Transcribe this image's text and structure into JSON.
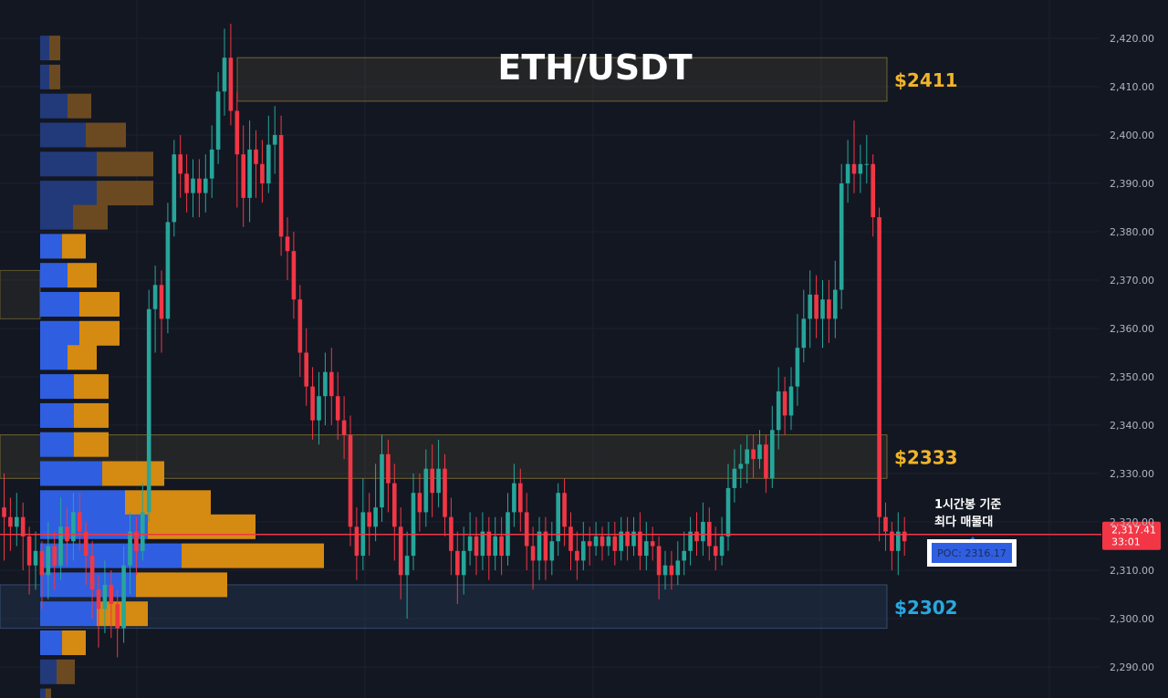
{
  "chart_data": {
    "type": "candlestick",
    "title": "ETH/USDT",
    "ylim": [
      2286,
      2424
    ],
    "y_ticks": [
      "2,420.00",
      "2,410.00",
      "2,400.00",
      "2,390.00",
      "2,380.00",
      "2,370.00",
      "2,360.00",
      "2,350.00",
      "2,340.00",
      "2,330.00",
      "2,320.00",
      "2,310.00",
      "2,300.00",
      "2,290.00"
    ],
    "y_tick_values": [
      2420,
      2410,
      2400,
      2390,
      2380,
      2370,
      2360,
      2350,
      2340,
      2330,
      2320,
      2310,
      2300,
      2290
    ],
    "current_price": "2,317.41",
    "current_price_value": 2317.41,
    "countdown": "33:01",
    "poc_label": "POC: 2316.17",
    "annotation": [
      "1시간봉 기준",
      "최다 매물대"
    ],
    "zones": [
      {
        "label": "$2411",
        "low": 2407,
        "high": 2416,
        "color": "#f0b429"
      },
      {
        "label": "$2333",
        "low": 2329,
        "high": 2338,
        "color": "#f0b429"
      },
      {
        "label": "$2302",
        "low": 2298,
        "high": 2307,
        "color": "#29a8e0"
      }
    ],
    "volume_profile": [
      {
        "price": 2418,
        "buy": 10,
        "sell": 12
      },
      {
        "price": 2412,
        "buy": 10,
        "sell": 12
      },
      {
        "price": 2406,
        "buy": 30,
        "sell": 26
      },
      {
        "price": 2400,
        "buy": 50,
        "sell": 44
      },
      {
        "price": 2394,
        "buy": 62,
        "sell": 62
      },
      {
        "price": 2388,
        "buy": 62,
        "sell": 62
      },
      {
        "price": 2383,
        "buy": 36,
        "sell": 38
      },
      {
        "price": 2377,
        "buy": 24,
        "sell": 26
      },
      {
        "price": 2371,
        "buy": 30,
        "sell": 32
      },
      {
        "price": 2365,
        "buy": 43,
        "sell": 44
      },
      {
        "price": 2359,
        "buy": 43,
        "sell": 44
      },
      {
        "price": 2354,
        "buy": 30,
        "sell": 32
      },
      {
        "price": 2348,
        "buy": 37,
        "sell": 38
      },
      {
        "price": 2342,
        "buy": 37,
        "sell": 38
      },
      {
        "price": 2336,
        "buy": 37,
        "sell": 38
      },
      {
        "price": 2330,
        "buy": 68,
        "sell": 68
      },
      {
        "price": 2324,
        "buy": 93,
        "sell": 94
      },
      {
        "price": 2319,
        "buy": 118,
        "sell": 118
      },
      {
        "price": 2313,
        "buy": 155,
        "sell": 156
      },
      {
        "price": 2307,
        "buy": 105,
        "sell": 100
      },
      {
        "price": 2301,
        "buy": 62,
        "sell": 56
      },
      {
        "price": 2295,
        "buy": 24,
        "sell": 26
      },
      {
        "price": 2289,
        "buy": 18,
        "sell": 20
      },
      {
        "price": 2283,
        "buy": 6,
        "sell": 6
      }
    ],
    "candles": [
      [
        2323,
        2321,
        2330,
        2312
      ],
      [
        2321,
        2319,
        2325,
        2314
      ],
      [
        2319,
        2321,
        2326,
        2315
      ],
      [
        2321,
        2317,
        2324,
        2310
      ],
      [
        2317,
        2311,
        2319,
        2305
      ],
      [
        2311,
        2314,
        2318,
        2306
      ],
      [
        2314,
        2309,
        2316,
        2302
      ],
      [
        2309,
        2315,
        2320,
        2304
      ],
      [
        2315,
        2311,
        2318,
        2306
      ],
      [
        2311,
        2319,
        2325,
        2308
      ],
      [
        2319,
        2316,
        2323,
        2311
      ],
      [
        2316,
        2322,
        2326,
        2312
      ],
      [
        2322,
        2318,
        2326,
        2314
      ],
      [
        2318,
        2313,
        2320,
        2307
      ],
      [
        2313,
        2306,
        2316,
        2300
      ],
      [
        2306,
        2302,
        2309,
        2294
      ],
      [
        2302,
        2307,
        2312,
        2297
      ],
      [
        2307,
        2303,
        2310,
        2296
      ],
      [
        2303,
        2298,
        2306,
        2292
      ],
      [
        2298,
        2311,
        2315,
        2295
      ],
      [
        2311,
        2318,
        2322,
        2305
      ],
      [
        2318,
        2314,
        2321,
        2309
      ],
      [
        2314,
        2322,
        2328,
        2312
      ],
      [
        2322,
        2364,
        2368,
        2320
      ],
      [
        2364,
        2369,
        2373,
        2355
      ],
      [
        2369,
        2362,
        2372,
        2355
      ],
      [
        2362,
        2382,
        2386,
        2359
      ],
      [
        2382,
        2396,
        2399,
        2379
      ],
      [
        2396,
        2392,
        2400,
        2387
      ],
      [
        2392,
        2388,
        2396,
        2384
      ],
      [
        2388,
        2391,
        2395,
        2383
      ],
      [
        2391,
        2388,
        2395,
        2383
      ],
      [
        2388,
        2391,
        2396,
        2384
      ],
      [
        2391,
        2397,
        2402,
        2387
      ],
      [
        2397,
        2409,
        2413,
        2394
      ],
      [
        2409,
        2416,
        2422,
        2404
      ],
      [
        2416,
        2405,
        2423,
        2402
      ],
      [
        2405,
        2396,
        2409,
        2385
      ],
      [
        2396,
        2387,
        2402,
        2381
      ],
      [
        2387,
        2397,
        2403,
        2382
      ],
      [
        2397,
        2394,
        2401,
        2387
      ],
      [
        2394,
        2390,
        2399,
        2386
      ],
      [
        2390,
        2398,
        2404,
        2388
      ],
      [
        2398,
        2400,
        2406,
        2392
      ],
      [
        2400,
        2379,
        2404,
        2375
      ],
      [
        2379,
        2376,
        2383,
        2370
      ],
      [
        2376,
        2366,
        2380,
        2362
      ],
      [
        2366,
        2355,
        2369,
        2350
      ],
      [
        2355,
        2348,
        2360,
        2344
      ],
      [
        2348,
        2341,
        2352,
        2337
      ],
      [
        2341,
        2346,
        2351,
        2336
      ],
      [
        2346,
        2351,
        2355,
        2340
      ],
      [
        2351,
        2346,
        2356,
        2340
      ],
      [
        2346,
        2341,
        2351,
        2337
      ],
      [
        2341,
        2338,
        2346,
        2333
      ],
      [
        2338,
        2319,
        2342,
        2315
      ],
      [
        2319,
        2313,
        2323,
        2308
      ],
      [
        2313,
        2322,
        2329,
        2310
      ],
      [
        2322,
        2319,
        2326,
        2313
      ],
      [
        2319,
        2323,
        2332,
        2316
      ],
      [
        2323,
        2334,
        2338,
        2320
      ],
      [
        2334,
        2328,
        2337,
        2322
      ],
      [
        2328,
        2319,
        2332,
        2312
      ],
      [
        2319,
        2309,
        2323,
        2304
      ],
      [
        2309,
        2313,
        2318,
        2300
      ],
      [
        2313,
        2326,
        2330,
        2310
      ],
      [
        2326,
        2322,
        2330,
        2318
      ],
      [
        2322,
        2331,
        2335,
        2319
      ],
      [
        2331,
        2326,
        2336,
        2321
      ],
      [
        2326,
        2331,
        2337,
        2323
      ],
      [
        2331,
        2321,
        2334,
        2317
      ],
      [
        2321,
        2314,
        2325,
        2309
      ],
      [
        2314,
        2309,
        2318,
        2303
      ],
      [
        2309,
        2314,
        2319,
        2305
      ],
      [
        2314,
        2317,
        2322,
        2311
      ],
      [
        2317,
        2313,
        2321,
        2309
      ],
      [
        2313,
        2318,
        2322,
        2310
      ],
      [
        2318,
        2313,
        2321,
        2308
      ],
      [
        2313,
        2317,
        2321,
        2310
      ],
      [
        2317,
        2313,
        2321,
        2309
      ],
      [
        2313,
        2322,
        2326,
        2311
      ],
      [
        2322,
        2328,
        2332,
        2319
      ],
      [
        2328,
        2322,
        2331,
        2318
      ],
      [
        2322,
        2315,
        2326,
        2310
      ],
      [
        2315,
        2312,
        2319,
        2306
      ],
      [
        2312,
        2318,
        2321,
        2308
      ],
      [
        2318,
        2312,
        2321,
        2308
      ],
      [
        2312,
        2316,
        2320,
        2309
      ],
      [
        2316,
        2326,
        2328,
        2313
      ],
      [
        2326,
        2319,
        2329,
        2315
      ],
      [
        2319,
        2314,
        2322,
        2310
      ],
      [
        2314,
        2312,
        2318,
        2308
      ],
      [
        2312,
        2316,
        2320,
        2310
      ],
      [
        2316,
        2315,
        2319,
        2311
      ],
      [
        2315,
        2317,
        2320,
        2313
      ],
      [
        2317,
        2315,
        2319,
        2312
      ],
      [
        2315,
        2317,
        2320,
        2313
      ],
      [
        2317,
        2314,
        2320,
        2311
      ],
      [
        2314,
        2318,
        2321,
        2312
      ],
      [
        2318,
        2315,
        2321,
        2312
      ],
      [
        2315,
        2318,
        2321,
        2313
      ],
      [
        2318,
        2313,
        2322,
        2310
      ],
      [
        2313,
        2316,
        2320,
        2310
      ],
      [
        2316,
        2315,
        2319,
        2312
      ],
      [
        2315,
        2309,
        2317,
        2304
      ],
      [
        2309,
        2311,
        2314,
        2306
      ],
      [
        2311,
        2309,
        2314,
        2306
      ],
      [
        2309,
        2312,
        2316,
        2307
      ],
      [
        2312,
        2314,
        2318,
        2309
      ],
      [
        2314,
        2318,
        2321,
        2311
      ],
      [
        2318,
        2316,
        2322,
        2313
      ],
      [
        2316,
        2320,
        2324,
        2313
      ],
      [
        2320,
        2315,
        2323,
        2312
      ],
      [
        2315,
        2313,
        2319,
        2310
      ],
      [
        2313,
        2317,
        2321,
        2311
      ],
      [
        2317,
        2327,
        2332,
        2314
      ],
      [
        2327,
        2331,
        2335,
        2324
      ],
      [
        2331,
        2332,
        2336,
        2327
      ],
      [
        2332,
        2335,
        2338,
        2328
      ],
      [
        2335,
        2333,
        2338,
        2329
      ],
      [
        2333,
        2336,
        2339,
        2331
      ],
      [
        2336,
        2329,
        2338,
        2326
      ],
      [
        2329,
        2339,
        2344,
        2327
      ],
      [
        2339,
        2347,
        2352,
        2335
      ],
      [
        2347,
        2342,
        2350,
        2338
      ],
      [
        2342,
        2348,
        2352,
        2339
      ],
      [
        2348,
        2356,
        2363,
        2344
      ],
      [
        2356,
        2362,
        2368,
        2353
      ],
      [
        2362,
        2367,
        2372,
        2356
      ],
      [
        2367,
        2362,
        2371,
        2358
      ],
      [
        2362,
        2366,
        2370,
        2356
      ],
      [
        2366,
        2362,
        2370,
        2357
      ],
      [
        2362,
        2368,
        2374,
        2358
      ],
      [
        2368,
        2390,
        2394,
        2364
      ],
      [
        2390,
        2394,
        2399,
        2386
      ],
      [
        2394,
        2392,
        2403,
        2388
      ],
      [
        2392,
        2394,
        2398,
        2388
      ],
      [
        2394,
        2394,
        2400,
        2390
      ],
      [
        2394,
        2383,
        2396,
        2379
      ],
      [
        2383,
        2321,
        2385,
        2316
      ],
      [
        2321,
        2318,
        2324,
        2314
      ],
      [
        2318,
        2314,
        2320,
        2310
      ],
      [
        2314,
        2318,
        2322,
        2309
      ],
      [
        2318,
        2316,
        2321,
        2313
      ]
    ]
  }
}
